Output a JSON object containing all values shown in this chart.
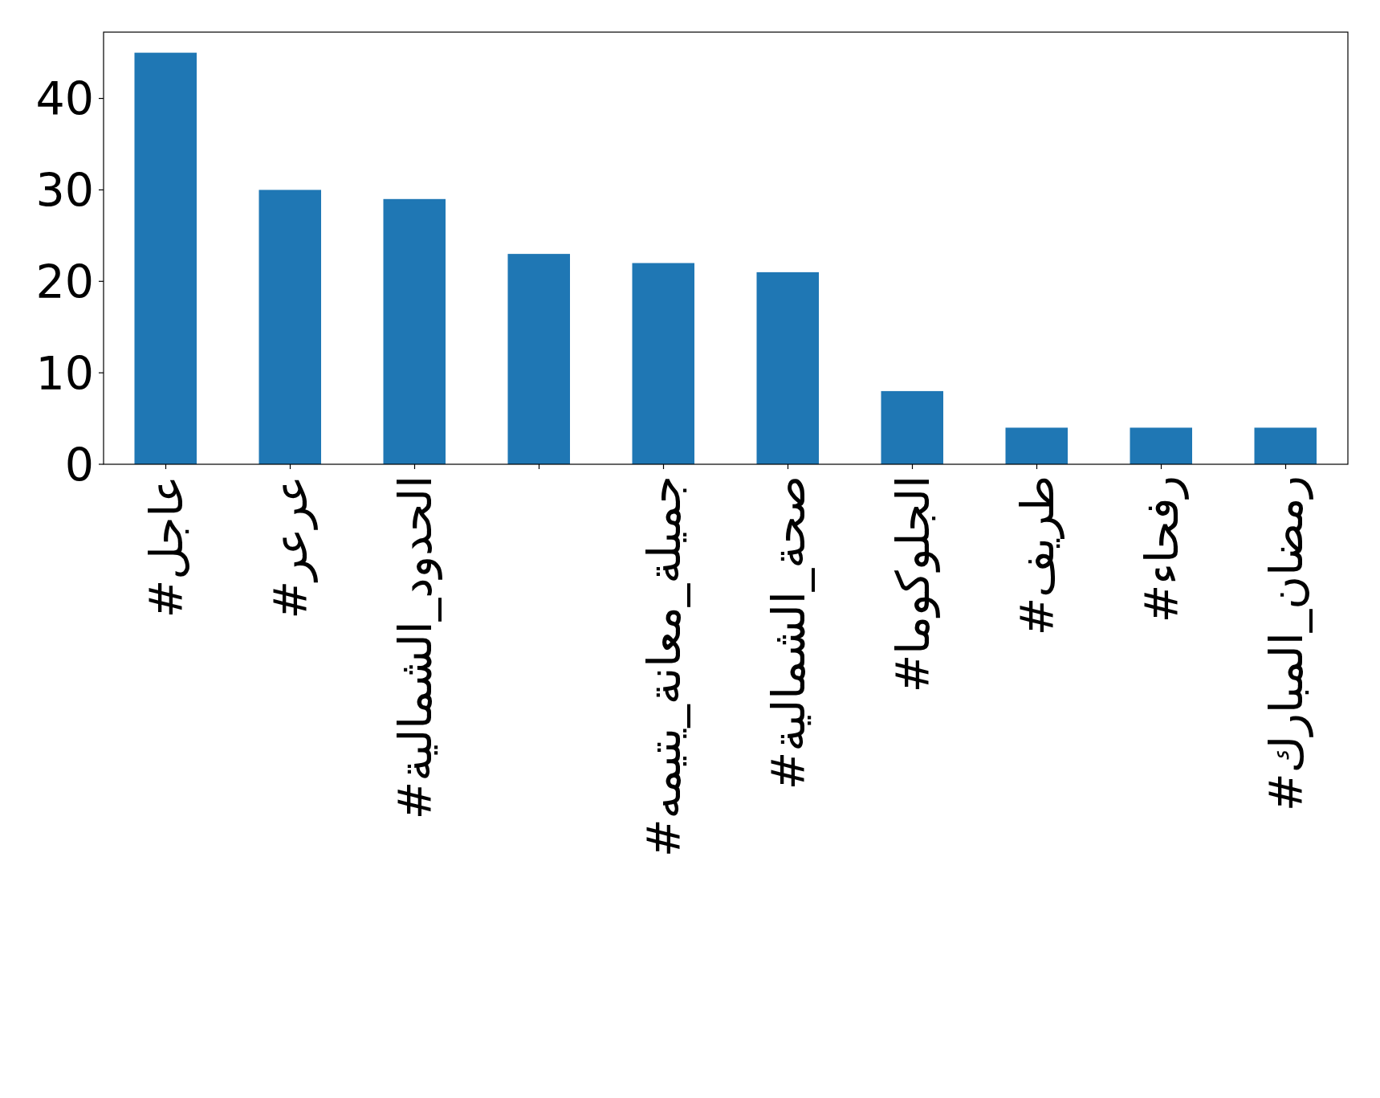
{
  "chart_data": {
    "type": "bar",
    "categories": [
      "#عاجل",
      "#عرعر",
      "#الحدود_الشمالية",
      null,
      "#جميلة_معانة_يتيمه",
      "#صحة_الشمالية",
      "#الجلوكوما",
      "#طريف",
      "#رفحاء",
      "#رمضان_المبارك"
    ],
    "values": [
      45,
      30,
      29,
      23,
      22,
      21,
      8,
      4,
      4,
      4
    ],
    "color": "#1f77b4",
    "ylim": [
      0,
      47.25
    ],
    "yticks": [
      0,
      10,
      20,
      30,
      40
    ]
  }
}
